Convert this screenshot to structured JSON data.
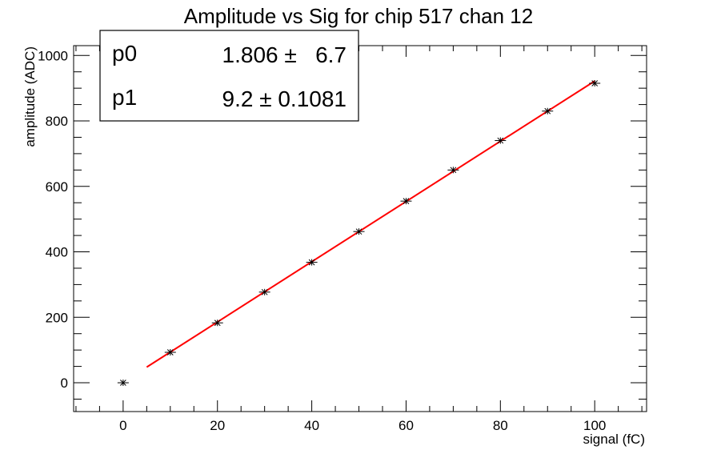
{
  "chart_data": {
    "type": "scatter",
    "title": "Amplitude vs Sig for chip 517 chan 12",
    "xlabel": "signal (fC)",
    "ylabel": "amplitude (ADC)",
    "xlim": [
      -10.5,
      111
    ],
    "ylim": [
      -88,
      1030
    ],
    "x_ticks": [
      0,
      20,
      40,
      60,
      80,
      100
    ],
    "y_ticks": [
      0,
      200,
      400,
      600,
      800,
      1000
    ],
    "x": [
      0,
      10,
      20,
      30,
      40,
      50,
      60,
      70,
      80,
      90,
      100
    ],
    "y": [
      0,
      93,
      183,
      277,
      368,
      462,
      555,
      650,
      740,
      830,
      915
    ],
    "fit": {
      "x_range": [
        5,
        100
      ],
      "intercept": 1.806,
      "slope": 9.2,
      "color": "#ff0000"
    },
    "stats": [
      {
        "name": "p0",
        "value": "1.806 ±   6.7"
      },
      {
        "name": "p1",
        "value": "9.2 ± 0.1081"
      }
    ],
    "grid": false,
    "marker_color": "#000000"
  }
}
